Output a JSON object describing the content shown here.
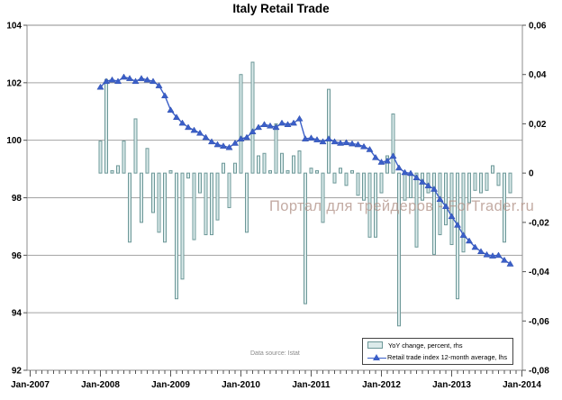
{
  "title": "Italy Retail Trade",
  "source_note": "Data source: Istat",
  "watermark": {
    "text": "Портал для трейдеров - ForTrader.ru"
  },
  "colors": {
    "bar_fill": "#dcebeb",
    "bar_border": "#6d9898",
    "line": "#3b5fc8",
    "marker_edge": "#2f4fae",
    "grid": "#a3a3a3",
    "plot_border": "#8c8c8c",
    "tick": "#555555",
    "watermark": "#b5978d",
    "source_text": "#8a8a8a",
    "axis_text": "#000000"
  },
  "chart_data": {
    "type": "bar+line combo",
    "title": "Italy Retail Trade",
    "x_start": "Jan-2008",
    "x_step": "monthly",
    "x_axis": {
      "year_tick_labels": [
        "Jan-2007",
        "Jan-2008",
        "Jan-2009",
        "Jan-2010",
        "Jan-2011",
        "Jan-2012",
        "Jan-2013",
        "Jan-2014"
      ],
      "minor_ticks": "monthly"
    },
    "left_axis": {
      "min": 92,
      "max": 104,
      "tick_labels": [
        "104",
        "102",
        "100",
        "98",
        "96",
        "94",
        "92"
      ],
      "tick_values": [
        104,
        102,
        100,
        98,
        96,
        94,
        92
      ]
    },
    "right_axis": {
      "min": -0.08,
      "max": 0.06,
      "tick_labels": [
        "0,06",
        "0,04",
        "0,02",
        "0",
        "-0,02",
        "-0,04",
        "-0,06",
        "-0,08"
      ],
      "tick_values": [
        0.06,
        0.04,
        0.02,
        0,
        -0.02,
        -0.04,
        -0.06,
        -0.08
      ]
    },
    "grid": "horizontal major gridlines (left axis)",
    "legend_position": "bottom-right inside plot",
    "series": [
      {
        "name": "YoY change, percent, rhs",
        "type": "bar",
        "axis": "right",
        "values": [
          0.013,
          0.038,
          0.001,
          0.003,
          0.013,
          -0.028,
          0.022,
          -0.02,
          0.01,
          -0.016,
          -0.024,
          -0.028,
          0.001,
          -0.051,
          -0.043,
          -0.002,
          -0.027,
          -0.008,
          -0.025,
          -0.025,
          -0.019,
          0.004,
          -0.014,
          0.004,
          0.04,
          -0.024,
          0.045,
          0.007,
          0.008,
          0.001,
          0.02,
          0.008,
          0.001,
          0.007,
          0.009,
          -0.053,
          0.002,
          0.001,
          -0.02,
          0.034,
          -0.004,
          0.002,
          -0.005,
          0.001,
          -0.009,
          -0.011,
          -0.026,
          -0.026,
          -0.008,
          0.007,
          0.024,
          -0.062,
          -0.011,
          -0.01,
          -0.03,
          -0.011,
          -0.008,
          -0.033,
          -0.025,
          -0.021,
          -0.029,
          -0.051,
          -0.032,
          -0.012,
          -0.007,
          -0.008,
          -0.007,
          0.003,
          -0.005,
          -0.028,
          -0.008
        ]
      },
      {
        "name": "Retail trade index 12-month average, lhs",
        "type": "line",
        "axis": "left",
        "marker": "triangle-up",
        "values": [
          101.85,
          102.05,
          102.1,
          102.05,
          102.2,
          102.15,
          102.05,
          102.15,
          102.1,
          102.05,
          101.9,
          101.55,
          101.05,
          100.8,
          100.6,
          100.45,
          100.35,
          100.25,
          100.1,
          99.95,
          99.85,
          99.8,
          99.75,
          99.9,
          100.05,
          100.1,
          100.3,
          100.45,
          100.55,
          100.5,
          100.45,
          100.6,
          100.55,
          100.6,
          100.75,
          100.05,
          100.08,
          100.02,
          99.95,
          100.05,
          99.95,
          99.9,
          99.92,
          99.88,
          99.85,
          99.78,
          99.68,
          99.4,
          99.24,
          99.28,
          99.45,
          99.04,
          98.88,
          98.85,
          98.7,
          98.55,
          98.42,
          98.3,
          97.95,
          97.7,
          97.35,
          97.05,
          96.7,
          96.5,
          96.28,
          96.13,
          96.02,
          95.98,
          96.0,
          95.83,
          95.7
        ]
      }
    ]
  }
}
